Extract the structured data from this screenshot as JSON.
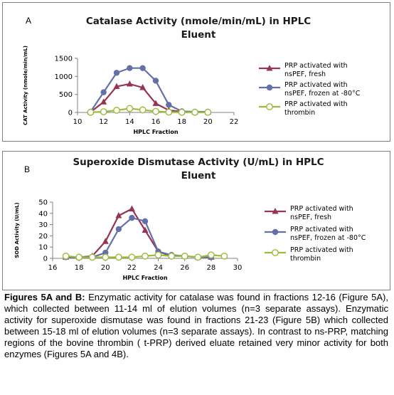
{
  "chart_data": [
    {
      "panel": "A",
      "type": "line",
      "title_line1": "Catalase Activity (nmole/min/mL) in HPLC",
      "title_line2": "Eluent",
      "xlabel": "HPLC Fraction",
      "ylabel": "CAT Activity (nmole/min/mL)",
      "xlim": [
        10,
        22
      ],
      "ylim": [
        0,
        1500
      ],
      "xticks": [
        10,
        12,
        14,
        16,
        18,
        20,
        22
      ],
      "yticks": [
        0,
        500,
        1000,
        1500
      ],
      "legend_position": "right",
      "series": [
        {
          "name_line1": "PRP activated with",
          "name_line2": "nsPEF, fresh",
          "color": "#953553",
          "marker": "triangle",
          "x": [
            11,
            12,
            13,
            14,
            15,
            16,
            17,
            18,
            19,
            20
          ],
          "y": [
            10,
            290,
            720,
            790,
            690,
            250,
            60,
            20,
            10,
            10
          ]
        },
        {
          "name_line1": "PRP activated with",
          "name_line2": "nsPEF, frozen at -80°C",
          "color": "#6470A8",
          "marker": "circle",
          "x": [
            11,
            12,
            13,
            14,
            15,
            16,
            17,
            18,
            19,
            20
          ],
          "y": [
            20,
            560,
            1100,
            1230,
            1230,
            880,
            210,
            30,
            20,
            20
          ]
        },
        {
          "name_line1": "PRP activated with",
          "name_line2": "thrombin",
          "color": "#9BBB3A",
          "marker": "circle-open",
          "x": [
            11,
            12,
            13,
            14,
            15,
            16,
            17,
            18,
            19,
            20
          ],
          "y": [
            5,
            20,
            60,
            110,
            70,
            30,
            10,
            5,
            5,
            5
          ]
        }
      ]
    },
    {
      "panel": "B",
      "type": "line",
      "title_line1": "Superoxide Dismutase Activity (U/mL) in HPLC",
      "title_line2": "Eluent",
      "xlabel": "HPLC Fraction",
      "ylabel": "SOD Activity (U/mL)",
      "xlim": [
        16,
        30
      ],
      "ylim": [
        0,
        50
      ],
      "xticks": [
        16,
        18,
        20,
        22,
        24,
        26,
        28,
        30
      ],
      "yticks": [
        0,
        10,
        20,
        30,
        40,
        50
      ],
      "legend_position": "right",
      "series": [
        {
          "name_line1": "PRP activated with",
          "name_line2": "nsPEF, fresh",
          "color": "#953553",
          "marker": "triangle",
          "x": [
            17,
            18,
            19,
            20,
            21,
            22,
            23,
            24,
            25,
            26,
            27,
            28
          ],
          "y": [
            1,
            1,
            2,
            15,
            38,
            44,
            25,
            6,
            2,
            2,
            1,
            1
          ]
        },
        {
          "name_line1": "PRP activated with",
          "name_line2": "nsPEF, frozen at -80°C",
          "color": "#6470A8",
          "marker": "circle",
          "x": [
            17,
            18,
            19,
            20,
            21,
            22,
            23,
            24,
            25,
            26,
            27,
            28
          ],
          "y": [
            1,
            1,
            1,
            5,
            26,
            36,
            33,
            6,
            3,
            2,
            1,
            1
          ]
        },
        {
          "name_line1": "PRP activated with",
          "name_line2": "thrombin",
          "color": "#9BBB3A",
          "marker": "circle-open",
          "x": [
            17,
            18,
            19,
            20,
            21,
            22,
            23,
            24,
            25,
            26,
            27,
            28,
            29
          ],
          "y": [
            2,
            1,
            1,
            1,
            1,
            1,
            2,
            3,
            2,
            2,
            1,
            3,
            2
          ]
        }
      ]
    }
  ],
  "caption": {
    "lead": "Figures 5A and B:",
    "text": " Enzymatic activity for catalase was found in fractions 12-16 (Figure 5A), which collected between 11-14 ml of elution volumes (n=3 separate assays).  Enzymatic activity for superoxide dismutase was found in fractions 21-23 (Figure 5B) which collected between 15-18 ml of elution volumes (n=3 separate assays).  In contrast to ns-PRP, matching regions of the bovine thrombin ( t-PRP)  derived eluate retained very minor activity for both enzymes (Figures 5A and 4B)."
  },
  "panels": {
    "a_letter": "A",
    "b_letter": "B"
  }
}
